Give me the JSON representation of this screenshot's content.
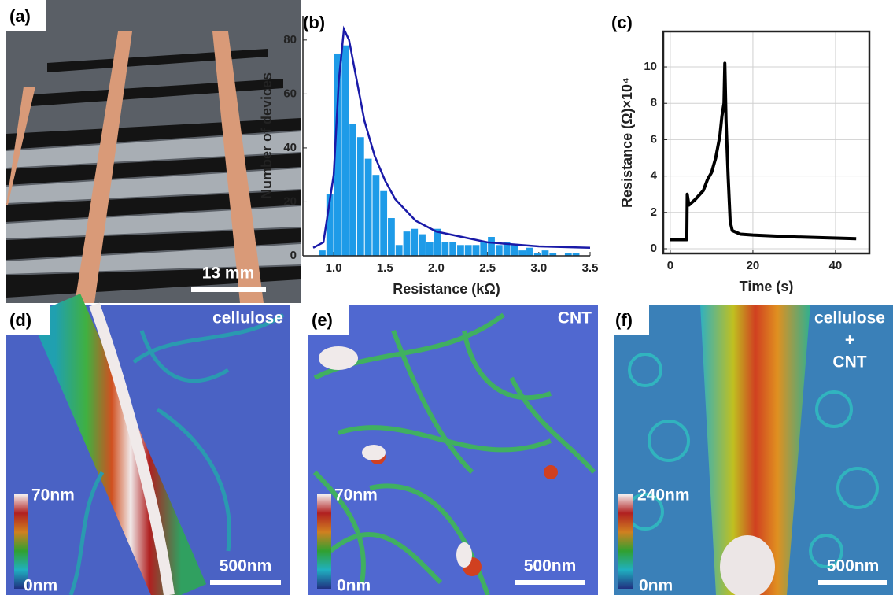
{
  "chart_data": [
    {
      "type": "histogram",
      "label": "(b)",
      "xlabel": "Resistance (kΩ)",
      "ylabel": "Number of devices",
      "bins": [
        0.85,
        0.925,
        1.0,
        1.075,
        1.15,
        1.225,
        1.3,
        1.375,
        1.45,
        1.525,
        1.6,
        1.675,
        1.75,
        1.825,
        1.9,
        1.975,
        2.05,
        2.125,
        2.2,
        2.275,
        2.35,
        2.425,
        2.5,
        2.575,
        2.65,
        2.725,
        2.8,
        2.875,
        2.95,
        3.025,
        3.1,
        3.175,
        3.25,
        3.325,
        3.4
      ],
      "counts": [
        2,
        23,
        75,
        78,
        49,
        44,
        36,
        30,
        24,
        14,
        4,
        9,
        10,
        8,
        5,
        10,
        5,
        5,
        4,
        4,
        4,
        5,
        7,
        4,
        5,
        4,
        2,
        3,
        1,
        2,
        1,
        0,
        1,
        1
      ],
      "color": "#1e9be8",
      "fit": {
        "color": "#1a1aa8",
        "x": [
          0.8,
          0.9,
          1.0,
          1.05,
          1.1,
          1.15,
          1.2,
          1.3,
          1.4,
          1.5,
          1.6,
          1.8,
          2.0,
          2.5,
          3.0,
          3.5
        ],
        "values": [
          3,
          5,
          30,
          65,
          84,
          80,
          70,
          50,
          37,
          28,
          21,
          13,
          9,
          5,
          3.5,
          3
        ]
      },
      "xlim": [
        0.7,
        3.5
      ],
      "ylim": [
        0,
        89
      ],
      "xticks": [
        {
          "value": 1,
          "label": "1.0"
        },
        1.5,
        {
          "value": 2,
          "label": "2.0"
        },
        2.5,
        {
          "value": 3,
          "label": "3.0"
        },
        3.5
      ],
      "yticks": [
        0,
        20,
        40,
        60,
        80
      ],
      "grid": false
    },
    {
      "type": "line",
      "label": "(c)",
      "xlabel": "Time (s)",
      "ylabel": "Resistance (Ω)×10⁴",
      "x": [
        0,
        4,
        4.1,
        4.5,
        6,
        8,
        9,
        10,
        11,
        12,
        12.5,
        13,
        13.2,
        13.5,
        14,
        14.5,
        15,
        17,
        20,
        30,
        45
      ],
      "values": [
        0.5,
        0.5,
        3.0,
        2.4,
        2.7,
        3.2,
        3.8,
        4.2,
        5,
        6.2,
        7.3,
        8,
        10.2,
        7,
        4,
        1.5,
        1.0,
        0.8,
        0.75,
        0.65,
        0.55
      ],
      "color": "#000000",
      "xlim": [
        -1.7,
        48.2
      ],
      "ylim": [
        -0.26,
        11.95
      ],
      "xticks": [
        0,
        20,
        40
      ],
      "yticks": [
        0,
        2,
        4,
        6,
        8,
        10
      ],
      "grid": true
    }
  ],
  "images": [
    {
      "label": "(a)",
      "scale_bar": "13 mm"
    },
    {
      "label": "(d)",
      "material": [
        "cellulose"
      ],
      "colorbar_max": "70nm",
      "colorbar_min": "0nm",
      "scale_bar": "500nm"
    },
    {
      "label": "(e)",
      "material": [
        "CNT"
      ],
      "colorbar_max": "70nm",
      "colorbar_min": "0nm",
      "scale_bar": "500nm"
    },
    {
      "label": "(f)",
      "material": [
        "cellulose",
        "+",
        "CNT"
      ],
      "colorbar_max": "240nm",
      "colorbar_min": "0nm",
      "scale_bar": "500nm"
    }
  ]
}
